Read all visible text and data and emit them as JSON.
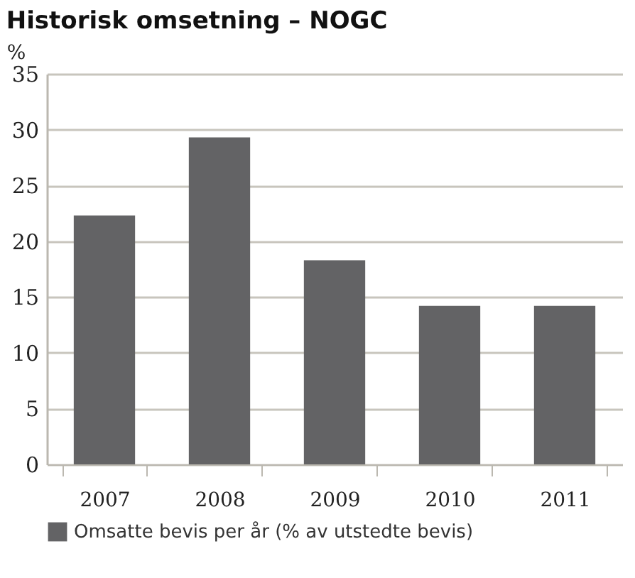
{
  "chart_data": {
    "type": "bar",
    "title": "Historisk omsetning – NOGC",
    "ylabel": "%",
    "categories": [
      "2007",
      "2008",
      "2009",
      "2010",
      "2011"
    ],
    "series": [
      {
        "name": "Omsatte bevis per år (% av utstedte bevis)",
        "color": "#636365",
        "values": [
          22.3,
          29.3,
          18.3,
          14.2,
          14.2
        ]
      }
    ],
    "ylim": [
      0,
      35
    ],
    "yticks": [
      0,
      5,
      10,
      15,
      20,
      25,
      30,
      35
    ],
    "grid": "y",
    "legend": "bottom"
  }
}
